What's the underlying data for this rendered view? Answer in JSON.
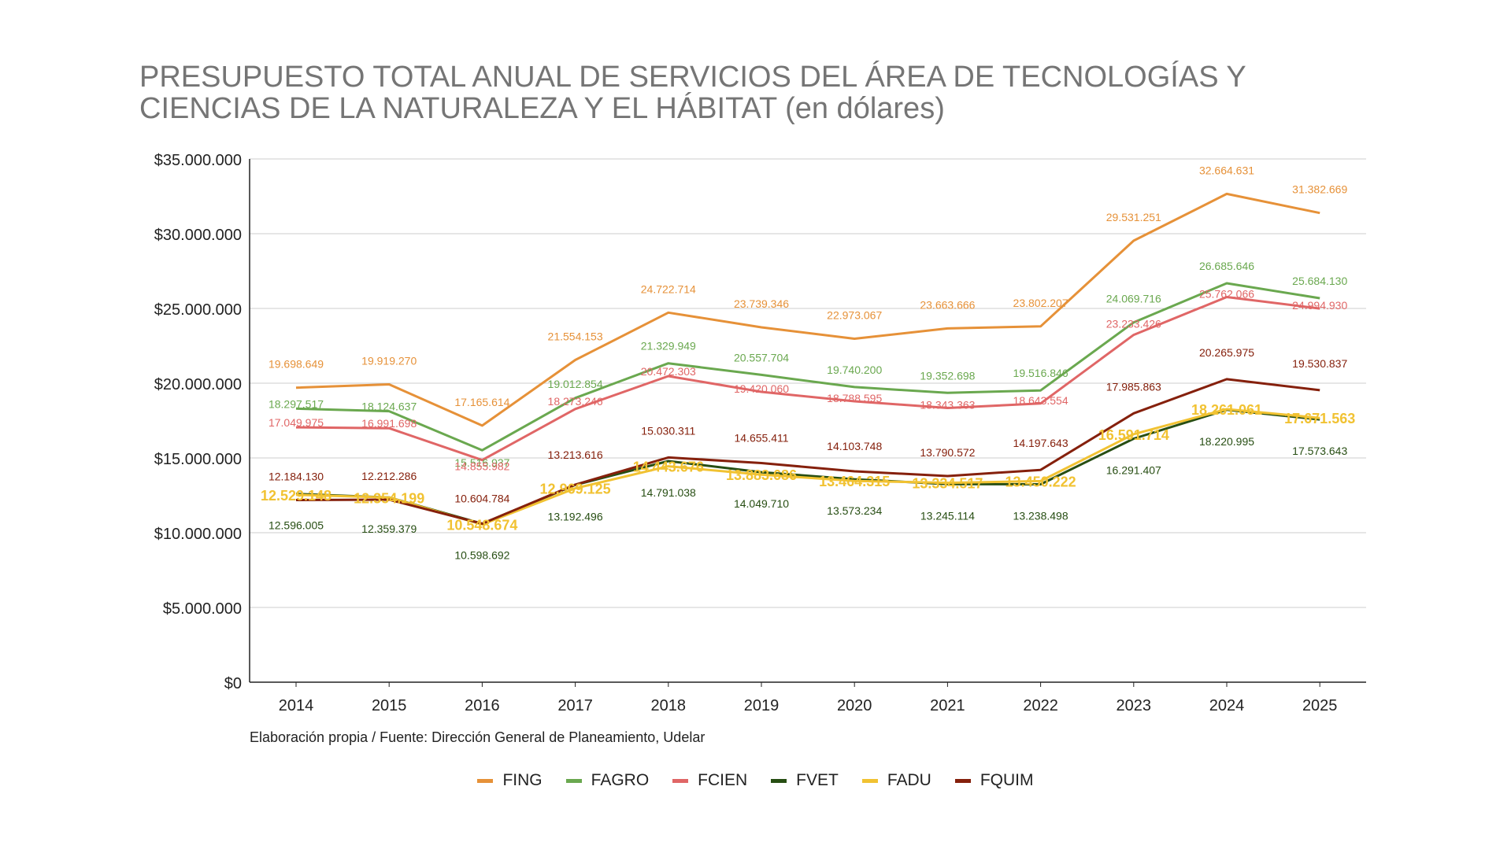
{
  "chart_data": {
    "type": "line",
    "title_lines": [
      "PRESUPUESTO TOTAL ANUAL DE SERVICIOS DEL ÁREA DE TECNOLOGÍAS Y",
      "CIENCIAS DE LA NATURALEZA Y EL HÁBITAT (en dólares)"
    ],
    "source": "Elaboración propia / Fuente: Dirección General de Planeamiento, Udelar",
    "x": [
      "2014",
      "2015",
      "2016",
      "2017",
      "2018",
      "2019",
      "2020",
      "2021",
      "2022",
      "2023",
      "2024",
      "2025"
    ],
    "ylim": [
      0,
      35000000
    ],
    "yticks": [
      0,
      5000000,
      10000000,
      15000000,
      20000000,
      25000000,
      30000000,
      35000000
    ],
    "ytick_labels": [
      "$0",
      "$5.000.000",
      "$10.000.000",
      "$15.000.000",
      "$20.000.000",
      "$25.000.000",
      "$30.000.000",
      "$35.000.000"
    ],
    "grid": true,
    "legend_position": "bottom",
    "series": [
      {
        "name": "FING",
        "color": "#e69138",
        "values": [
          19698649,
          19919270,
          17165614,
          21554153,
          24722714,
          23739346,
          22973067,
          23663666,
          23802207,
          29531251,
          32664631,
          31382669
        ],
        "labels": [
          "19.698.649",
          "19.919.270",
          "17.165.614",
          "21.554.153",
          "24.722.714",
          "23.739.346",
          "22.973.067",
          "23.663.666",
          "23.802.207",
          "29.531.251",
          "32.664.631",
          "31.382.669"
        ]
      },
      {
        "name": "FAGRO",
        "color": "#6aa84f",
        "values": [
          18297517,
          18124637,
          15516937,
          19012854,
          21329949,
          20557704,
          19740200,
          19352698,
          19516846,
          24069716,
          26685646,
          25684130
        ],
        "labels": [
          "18.297.517",
          "18.124.637",
          "15.516.937",
          "19.012.854",
          "21.329.949",
          "20.557.704",
          "19.740.200",
          "19.352.698",
          "19.516.846",
          "24.069.716",
          "26.685.646",
          "25.684.130"
        ]
      },
      {
        "name": "FCIEN",
        "color": "#e06666",
        "values": [
          17049975,
          16991698,
          14855982,
          18273246,
          20472303,
          19420060,
          18788595,
          18343363,
          18643554,
          23233426,
          25762066,
          24994930
        ],
        "labels": [
          "17.049.975",
          "16.991.698",
          "14.855.982",
          "18.273.246",
          "20.472.303",
          "19.420.060",
          "18.788.595",
          "18.343.363",
          "18.643.554",
          "23.233.426",
          "25.762.066",
          "24.994.930"
        ]
      },
      {
        "name": "FVET",
        "color": "#274e13",
        "values": [
          12596005,
          12359379,
          10598692,
          13192496,
          14791038,
          14049710,
          13573234,
          13245114,
          13238498,
          16291407,
          18220995,
          17573643
        ],
        "labels": [
          "12.596.005",
          "12.359.379",
          "10.598.692",
          "13.192.496",
          "14.791.038",
          "14.049.710",
          "13.573.234",
          "13.245.114",
          "13.238.498",
          "16.291.407",
          "18.220.995",
          "17.573.643"
        ]
      },
      {
        "name": "FADU",
        "color": "#f1c232",
        "values": [
          12529148,
          12354199,
          10548674,
          12969125,
          14443676,
          13883686,
          13464315,
          13334517,
          13450222,
          16591714,
          18261061,
          17671563
        ],
        "labels": [
          "12.529.148",
          "12.354.199",
          "10.548.674",
          "12.969.125",
          "14.443.676",
          "13.883.686",
          "13.464.315",
          "13.334.517",
          "13.450.222",
          "16.591.714",
          "18.261.061",
          "17.671.563"
        ]
      },
      {
        "name": "FQUIM",
        "color": "#85200c",
        "values": [
          12184130,
          12212286,
          10604784,
          13213616,
          15030311,
          14655411,
          14103748,
          13790572,
          14197643,
          17985863,
          20265975,
          19530837
        ],
        "labels": [
          "12.184.130",
          "12.212.286",
          "10.604.784",
          "13.213.616",
          "15.030.311",
          "14.655.411",
          "14.103.748",
          "13.790.572",
          "14.197.643",
          "17.985.863",
          "20.265.975",
          "19.530.837"
        ]
      }
    ]
  }
}
